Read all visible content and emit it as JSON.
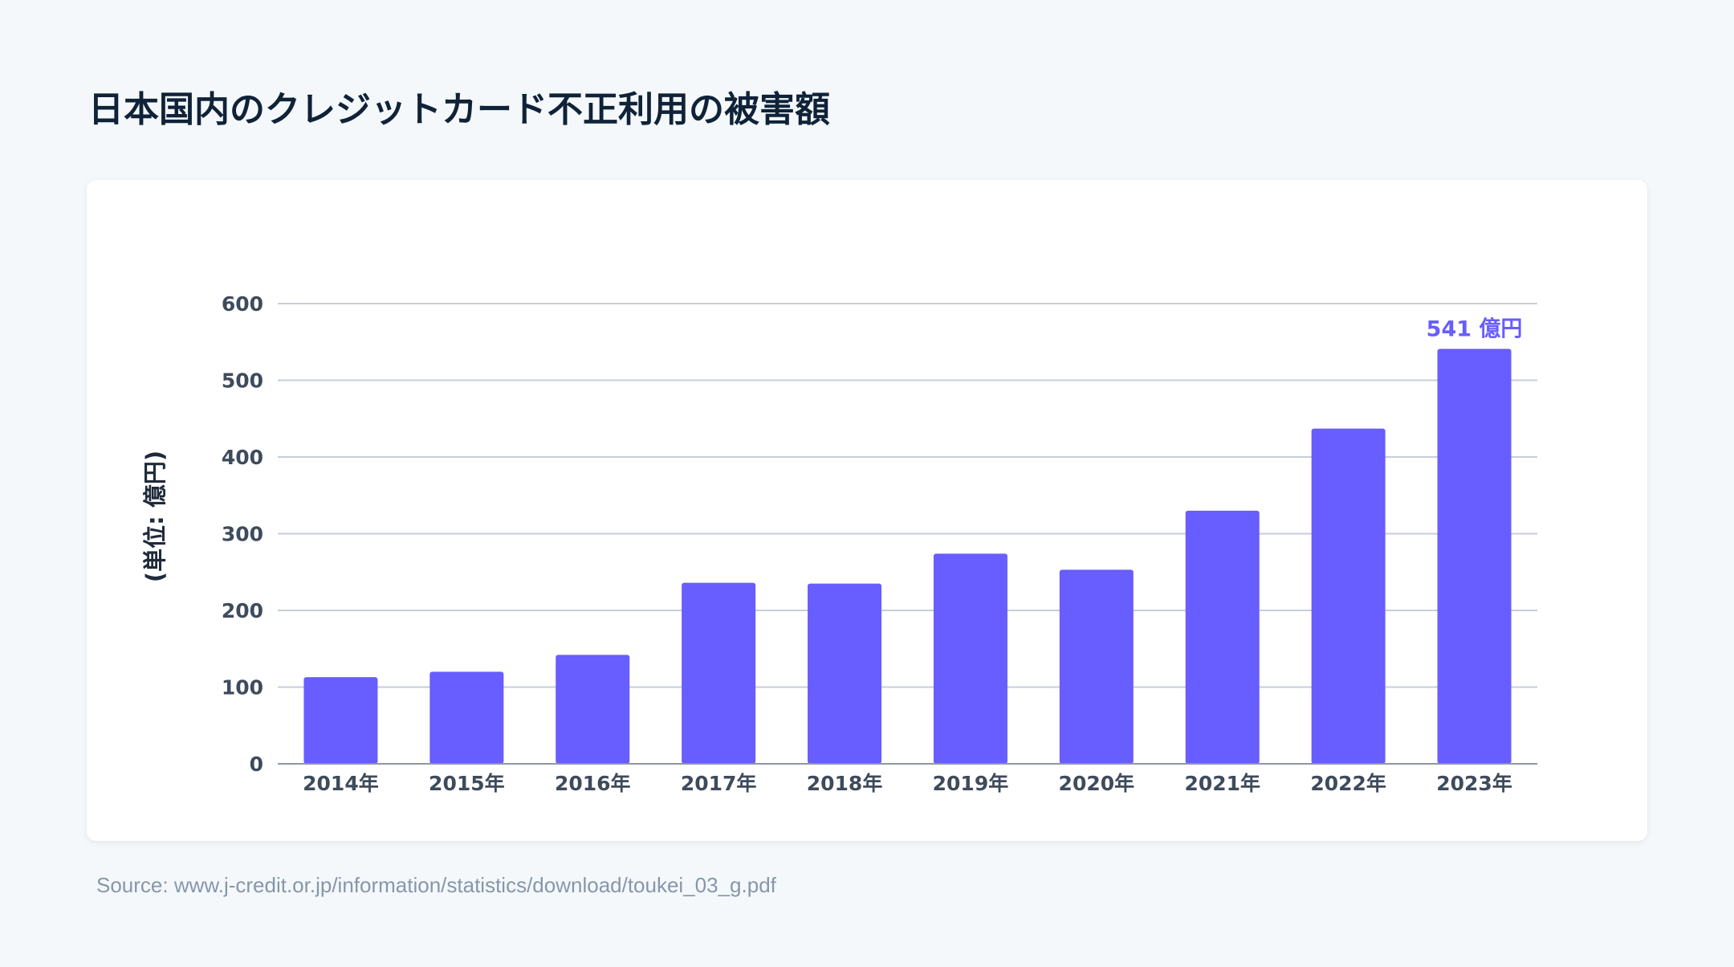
{
  "title": "日本国内のクレジットカード不正利用の被害額",
  "source": "Source: www.j-credit.or.jp/information/statistics/download/toukei_03_g.pdf",
  "chart_data": {
    "type": "bar",
    "title": "日本国内のクレジットカード不正利用の被害額",
    "ylabel": "(単位: 億円)",
    "xlabel": "",
    "categories": [
      "2014年",
      "2015年",
      "2016年",
      "2017年",
      "2018年",
      "2019年",
      "2020年",
      "2021年",
      "2022年",
      "2023年"
    ],
    "values": [
      113,
      120,
      142,
      236,
      235,
      274,
      253,
      330,
      437,
      541
    ],
    "ylim": [
      0,
      600
    ],
    "yticks": [
      "0",
      "100",
      "200",
      "300",
      "400",
      "500",
      "600"
    ],
    "grid": true,
    "annotation": {
      "category": "2023年",
      "text": "541 億円"
    },
    "colors": {
      "bar": "#685dfe",
      "annotation": "#685dfe",
      "grid": "#c6ceda",
      "axis": "#8d97a6",
      "tick_text": "#3e4b5c"
    }
  }
}
